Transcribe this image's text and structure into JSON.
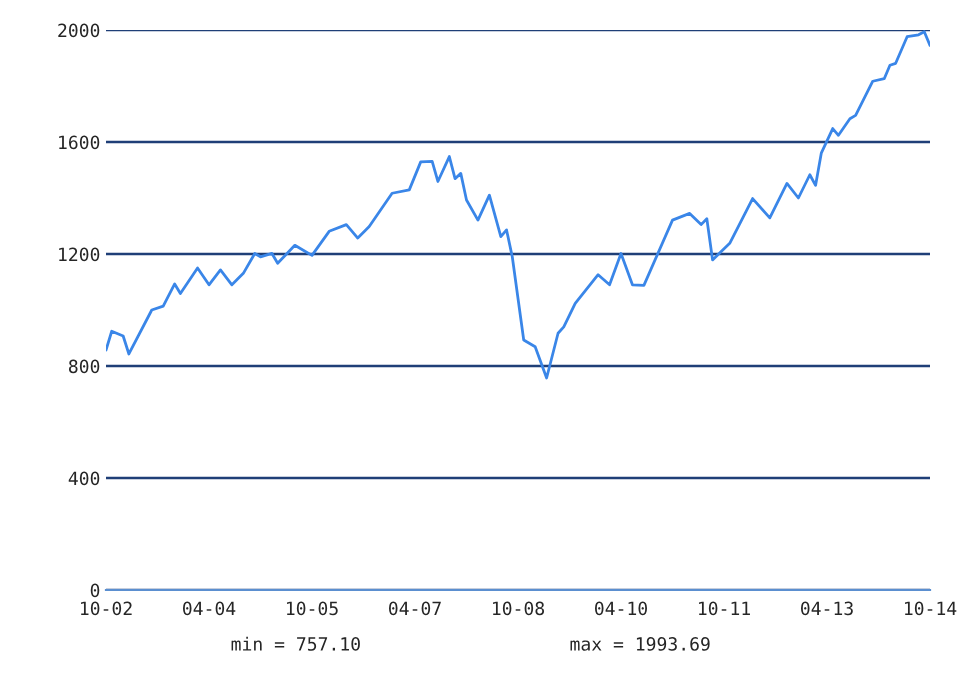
{
  "chart_data": {
    "type": "line",
    "x": [
      "2002-10",
      "2002-11",
      "2003-01",
      "2003-02",
      "2003-06",
      "2003-08",
      "2003-10",
      "2003-11",
      "2004-02",
      "2004-04",
      "2004-06",
      "2004-08",
      "2004-10",
      "2004-12",
      "2005-01",
      "2005-03",
      "2005-04",
      "2005-07",
      "2005-10",
      "2006-01",
      "2006-04",
      "2006-06",
      "2006-08",
      "2006-12",
      "2007-03",
      "2007-05",
      "2007-07",
      "2007-08",
      "2007-10",
      "2007-11",
      "2007-12",
      "2008-01",
      "2008-03",
      "2008-05",
      "2008-07",
      "2008-08",
      "2008-09",
      "2008-11",
      "2009-01",
      "2009-03",
      "2009-05",
      "2009-06",
      "2009-08",
      "2009-12",
      "2010-02",
      "2010-04",
      "2010-06",
      "2010-08",
      "2011-01",
      "2011-04",
      "2011-06",
      "2011-07",
      "2011-08",
      "2011-11",
      "2012-03",
      "2012-06",
      "2012-09",
      "2012-11",
      "2013-01",
      "2013-02",
      "2013-03",
      "2013-05",
      "2013-06",
      "2013-08",
      "2013-09",
      "2013-12",
      "2014-02",
      "2014-03",
      "2014-04",
      "2014-06",
      "2014-08",
      "2014-09",
      "2014-10"
    ],
    "series": [
      {
        "color": "#3a86e8",
        "values": [
          857,
          924,
          907,
          843,
          1000,
          1014,
          1093,
          1059,
          1150,
          1090,
          1143,
          1090,
          1131,
          1202,
          1190,
          1202,
          1167,
          1231,
          1195,
          1281,
          1305,
          1257,
          1298,
          1417,
          1429,
          1529,
          1531,
          1459,
          1548,
          1469,
          1488,
          1393,
          1321,
          1410,
          1262,
          1286,
          1190,
          893,
          869,
          757.1,
          917,
          940,
          1024,
          1126,
          1090,
          1202,
          1090,
          1088,
          1321,
          1345,
          1305,
          1326,
          1179,
          1238,
          1398,
          1329,
          1452,
          1400,
          1483,
          1445,
          1560,
          1648,
          1624,
          1683,
          1695,
          1817,
          1826,
          1874,
          1881,
          1976,
          1983,
          1993.69,
          1945
        ]
      }
    ],
    "xlim": [
      "2002-10",
      "2014-10"
    ],
    "xticks": [
      {
        "value": "2002-10",
        "label": "10-02"
      },
      {
        "value": "2004-04",
        "label": "04-04"
      },
      {
        "value": "2005-10",
        "label": "10-05"
      },
      {
        "value": "2007-04",
        "label": "04-07"
      },
      {
        "value": "2008-10",
        "label": "10-08"
      },
      {
        "value": "2010-04",
        "label": "04-10"
      },
      {
        "value": "2011-10",
        "label": "10-11"
      },
      {
        "value": "2013-04",
        "label": "04-13"
      },
      {
        "value": "2014-10",
        "label": "10-14"
      }
    ],
    "ylim": [
      0,
      2000
    ],
    "yticks": [
      0,
      400,
      800,
      1200,
      1600,
      2000
    ],
    "grid": "y",
    "line_style": "solid",
    "annotations": [
      "min = 757.10",
      "max = 1993.69"
    ]
  }
}
